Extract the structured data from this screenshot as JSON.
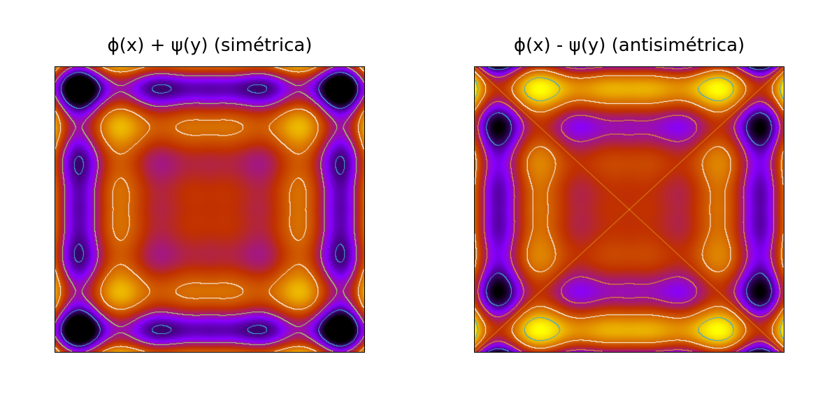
{
  "chart_data": [
    {
      "type": "heatmap",
      "title": "ϕ(x) + ψ(y) (simétrica)",
      "combination": "sum",
      "colormap": "gnuplot-pm3d",
      "colormap_stops": [
        "#000000",
        "#8800ff",
        "#c03000",
        "#e08800",
        "#ffff00"
      ],
      "contour_colors": [
        "#40a8d8",
        "#a0e060",
        "#ffffff"
      ],
      "grid": false,
      "legend": "none",
      "xlabel": "",
      "ylabel": ""
    },
    {
      "type": "heatmap",
      "title": "ϕ(x) - ψ(y) (antisimétrica)",
      "combination": "difference",
      "colormap": "gnuplot-pm3d",
      "colormap_stops": [
        "#000000",
        "#8800ff",
        "#c03000",
        "#e08800",
        "#ffff00"
      ],
      "contour_colors": [
        "#40a8d8",
        "#e0a020",
        "#ffffff"
      ],
      "grid": false,
      "legend": "none",
      "xlabel": "",
      "ylabel": ""
    }
  ]
}
